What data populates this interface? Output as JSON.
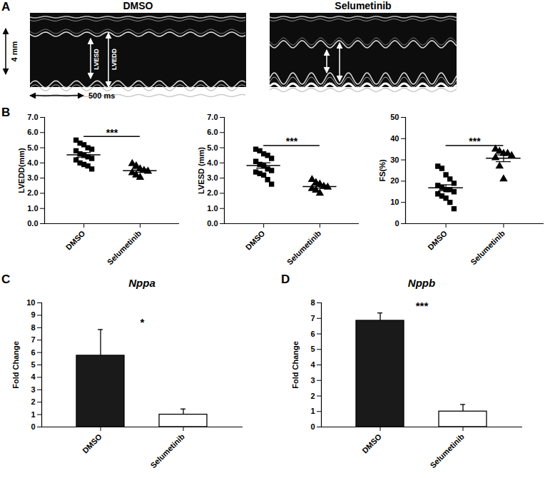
{
  "chart_data": [
    {
      "type": "image",
      "panel": "A",
      "title": "DMSO",
      "annotations": [
        "LVESD",
        "LVEDD"
      ],
      "scale_bars": [
        "4 mm",
        "500 ms"
      ]
    },
    {
      "type": "image",
      "title": "Selumetinib"
    },
    {
      "type": "scatter",
      "panel": "B",
      "y_label": "LVEDD(mm)",
      "ylim": [
        0,
        7
      ],
      "yticks": [
        0,
        1,
        2,
        3,
        4,
        5,
        6,
        7
      ],
      "series": [
        {
          "name": "DMSO",
          "marker": "square",
          "color": "#000000",
          "values": [
            5.5,
            5.3,
            5.2,
            5.0,
            4.9,
            4.8,
            4.6,
            4.5,
            4.4,
            4.3,
            4.2,
            4.0,
            3.9,
            3.8,
            3.6
          ],
          "mean": 4.53,
          "sem": 0.15
        },
        {
          "name": "Selumetinib",
          "marker": "triangle",
          "color": "#000000",
          "values": [
            3.95,
            3.8,
            3.6,
            3.5,
            3.45,
            3.35,
            3.2,
            3.05
          ],
          "mean": 3.49,
          "sem": 0.11
        }
      ],
      "annotations": [
        "***"
      ]
    },
    {
      "type": "scatter",
      "y_label": "LVESD (mm)",
      "ylim": [
        0,
        7
      ],
      "yticks": [
        0,
        1,
        2,
        3,
        4,
        5,
        6,
        7
      ],
      "series": [
        {
          "name": "DMSO",
          "marker": "square",
          "color": "#000000",
          "values": [
            4.9,
            4.8,
            4.6,
            4.5,
            4.3,
            4.1,
            3.9,
            3.8,
            3.6,
            3.5,
            3.4,
            3.3,
            3.2,
            2.9,
            2.6
          ],
          "mean": 3.83,
          "sem": 0.18
        },
        {
          "name": "Selumetinib",
          "marker": "triangle",
          "color": "#000000",
          "values": [
            2.9,
            2.7,
            2.6,
            2.45,
            2.4,
            2.3,
            2.2,
            2.0
          ],
          "mean": 2.44,
          "sem": 0.1
        }
      ],
      "annotations": [
        "***"
      ]
    },
    {
      "type": "scatter",
      "y_label": "FS(%)",
      "ylim": [
        0,
        50
      ],
      "yticks": [
        0,
        10,
        20,
        30,
        40,
        50
      ],
      "series": [
        {
          "name": "DMSO",
          "marker": "square",
          "color": "#000000",
          "values": [
            27,
            26,
            23,
            21,
            19,
            18,
            17,
            16,
            16,
            15,
            14,
            13,
            12,
            10,
            7
          ],
          "mean": 16.9,
          "sem": 1.4
        },
        {
          "name": "Selumetinib",
          "marker": "triangle",
          "color": "#000000",
          "values": [
            35,
            34,
            33,
            33,
            32,
            31,
            27,
            21
          ],
          "mean": 30.75,
          "sem": 1.6
        }
      ],
      "annotations": [
        "***"
      ]
    },
    {
      "type": "bar",
      "panel": "C",
      "title": "Nppa",
      "categories": [
        "DMSO",
        "Selumetinib"
      ],
      "values": [
        5.75,
        1.0
      ],
      "error": [
        2.1,
        0.45
      ],
      "colors": [
        "#1a1a1a",
        "#ffffff"
      ],
      "y_label": "Fold Change",
      "ylim": [
        0,
        10
      ],
      "yticks": [
        0,
        1,
        2,
        3,
        4,
        5,
        6,
        7,
        8,
        9,
        10
      ],
      "annotations": [
        "*"
      ]
    },
    {
      "type": "bar",
      "panel": "D",
      "title": "Nppb",
      "categories": [
        "DMSO",
        "Selumetinib"
      ],
      "values": [
        6.85,
        1.0
      ],
      "error": [
        0.5,
        0.45
      ],
      "colors": [
        "#1a1a1a",
        "#ffffff"
      ],
      "y_label": "Fold Change",
      "ylim": [
        0,
        8
      ],
      "yticks": [
        0,
        1,
        2,
        3,
        4,
        5,
        6,
        7,
        8
      ],
      "annotations": [
        "***"
      ]
    }
  ]
}
